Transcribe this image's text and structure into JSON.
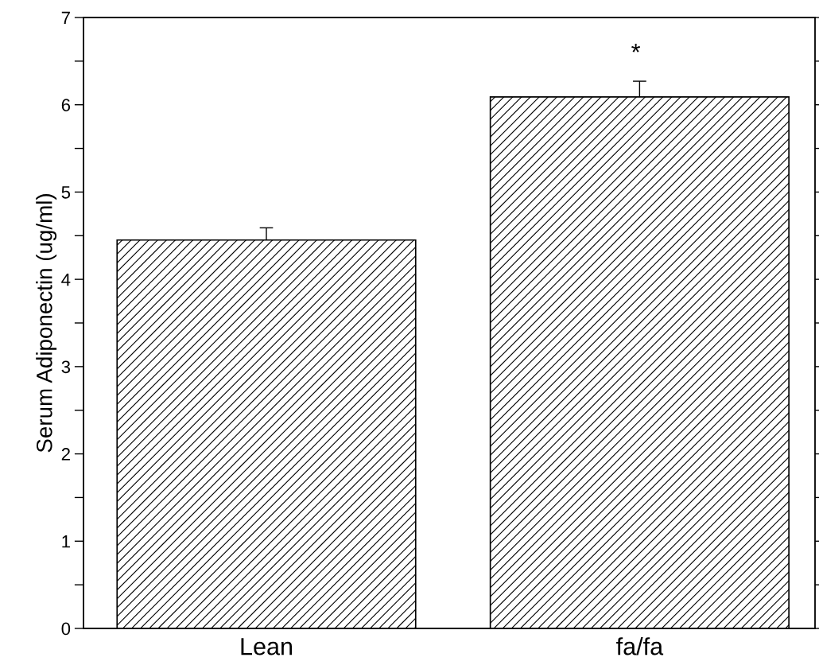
{
  "chart_data": {
    "type": "bar",
    "ylabel": "Serum Adiponectin (ug/ml)",
    "categories": [
      "Lean",
      "fa/fa"
    ],
    "values": [
      4.45,
      6.09
    ],
    "errors": [
      0.14,
      0.18
    ],
    "color": "#000000",
    "ylim": [
      0,
      7
    ],
    "yticks": [
      0,
      {
        "value": 0.5,
        "label": null
      },
      1,
      {
        "value": 1.5,
        "label": null
      },
      2,
      {
        "value": 2.5,
        "label": null
      },
      3,
      {
        "value": 3.5,
        "label": null
      },
      4,
      {
        "value": 4.5,
        "label": null
      },
      5,
      {
        "value": 5.5,
        "label": null
      },
      6,
      {
        "value": 6.5,
        "label": null
      },
      7
    ],
    "annotations": [
      "*"
    ],
    "grid": false
  }
}
